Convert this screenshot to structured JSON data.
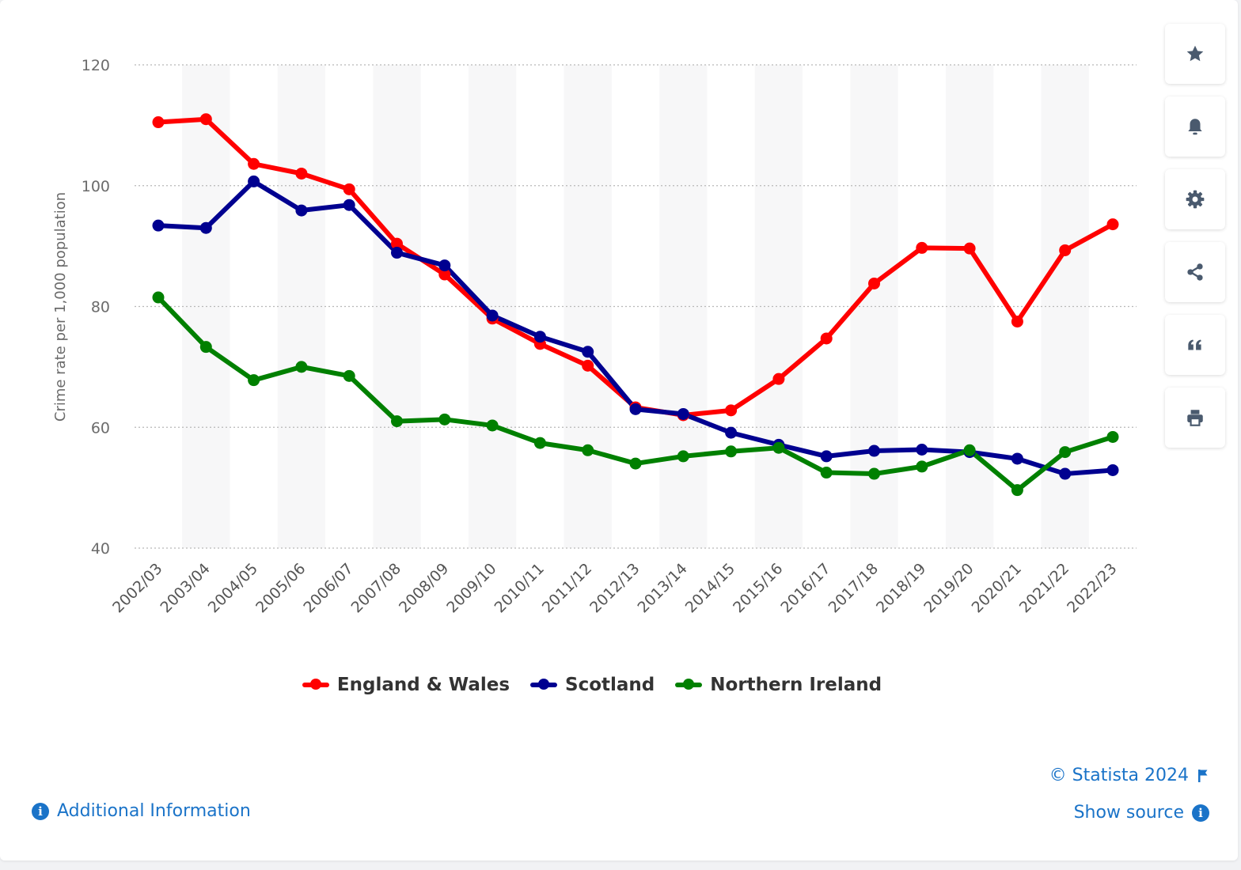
{
  "colors": {
    "england_wales": "#ff0000",
    "scotland": "#000090",
    "northern_ireland": "#008000",
    "link": "#1a73c8",
    "icon": "#4a5a6e"
  },
  "chart_data": {
    "type": "line",
    "title": "",
    "xlabel": "",
    "ylabel": "Crime rate per 1,000 population",
    "ylim": [
      40,
      120
    ],
    "yticks": [
      40,
      60,
      80,
      100,
      120
    ],
    "grid": true,
    "legend_position": "bottom",
    "categories": [
      "2002/03",
      "2003/04",
      "2004/05",
      "2005/06",
      "2006/07",
      "2007/08",
      "2008/09",
      "2009/10",
      "2010/11",
      "2011/12",
      "2012/13",
      "2013/14",
      "2014/15",
      "2015/16",
      "2016/17",
      "2017/18",
      "2018/19",
      "2019/20",
      "2020/21",
      "2021/22",
      "2022/23"
    ],
    "series": [
      {
        "name": "England & Wales",
        "color": "#ff0000",
        "values": [
          110.5,
          111,
          103.6,
          102,
          99.4,
          90.4,
          85.3,
          78,
          73.8,
          70.2,
          63.3,
          62,
          62.8,
          68,
          74.7,
          83.8,
          89.7,
          89.6,
          77.5,
          89.3,
          93.6
        ]
      },
      {
        "name": "Scotland",
        "color": "#000090",
        "values": [
          93.4,
          93,
          100.7,
          95.9,
          96.8,
          88.9,
          86.8,
          78.5,
          75,
          72.5,
          63,
          62.2,
          59.1,
          57.1,
          55.2,
          56.1,
          56.3,
          55.9,
          54.8,
          52.3,
          52.9
        ]
      },
      {
        "name": "Northern Ireland",
        "color": "#008000",
        "values": [
          81.5,
          73.3,
          67.8,
          70,
          68.5,
          61,
          61.3,
          60.3,
          57.4,
          56.2,
          54,
          55.2,
          56,
          56.6,
          52.5,
          52.3,
          53.5,
          56.2,
          49.6,
          55.9,
          58.4
        ]
      }
    ]
  },
  "legend": {
    "england_wales": "England & Wales",
    "scotland": "Scotland",
    "northern_ireland": "Northern Ireland"
  },
  "toolbar": {
    "buttons": [
      "star-icon",
      "bell-icon",
      "gear-icon",
      "share-icon",
      "quote-icon",
      "print-icon"
    ]
  },
  "footer": {
    "copyright": "© Statista 2024",
    "show_source": "Show source",
    "additional_info": "Additional Information"
  }
}
